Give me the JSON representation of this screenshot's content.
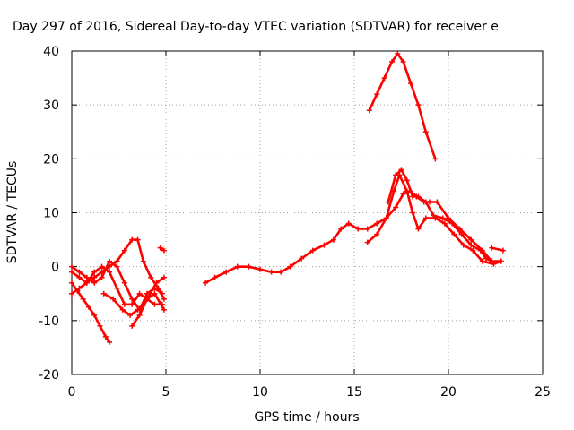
{
  "chart_data": {
    "type": "scatter",
    "title": "Day 297 of 2016, Sidereal Day-to-day VTEC variation (SDTVAR) for receiver e",
    "xlabel": "GPS time / hours",
    "ylabel": "SDTVAR / TECUs",
    "xlim": [
      0,
      25
    ],
    "ylim": [
      -20,
      40
    ],
    "xticks": [
      "0",
      "5",
      "10",
      "15",
      "20",
      "25"
    ],
    "yticks": [
      "-20",
      "-10",
      "0",
      "10",
      "20",
      "30",
      "40"
    ],
    "grid": true,
    "legend": "none",
    "marker": "+",
    "color": "#ff0000",
    "series": [
      {
        "x": [
          0,
          0.3,
          0.6,
          0.9,
          1.2,
          1.5,
          1.8,
          2.0
        ],
        "y": [
          -3,
          -4.5,
          -6,
          -7.5,
          -9,
          -11,
          -13,
          -14
        ]
      },
      {
        "x": [
          0,
          0.4,
          0.8,
          1.2,
          1.6,
          2.0,
          2.4,
          2.8,
          3.2,
          3.6,
          4.0,
          4.4,
          4.8
        ],
        "y": [
          -1,
          -2,
          -3,
          -1,
          0,
          -1,
          -4,
          -7,
          -7,
          -5,
          -6,
          -7,
          -7
        ]
      },
      {
        "x": [
          0,
          0.4,
          0.8,
          1.2,
          1.6,
          2.0,
          2.4,
          2.8,
          3.2,
          3.6,
          4.0,
          4.4,
          4.8
        ],
        "y": [
          0,
          -1,
          -2,
          -3,
          -2,
          1,
          0,
          -3,
          -6,
          -8,
          -5,
          -4,
          -5
        ]
      },
      {
        "x": [
          0,
          0.4,
          0.8,
          1.2,
          1.6,
          2.0,
          2.4,
          2.8,
          3.2,
          3.5,
          3.8,
          4.2,
          4.6,
          4.9
        ],
        "y": [
          -5,
          -4,
          -3,
          -2,
          -1,
          0,
          1,
          3,
          5,
          5,
          1,
          -2,
          -4,
          -6
        ]
      },
      {
        "x": [
          1.7,
          2.2,
          2.7,
          3.1,
          3.5,
          4.0,
          4.5,
          4.9
        ],
        "y": [
          -5,
          -6,
          -8,
          -9,
          -8,
          -6,
          -3,
          -2
        ]
      },
      {
        "x": [
          3.2,
          3.6,
          4.0,
          4.4,
          4.9
        ],
        "y": [
          -11,
          -9,
          -6,
          -5,
          -8
        ]
      },
      {
        "x": [
          4.7,
          4.9
        ],
        "y": [
          3.5,
          3
        ]
      },
      {
        "x": [
          7.1,
          7.6,
          8.2,
          8.8,
          9.4,
          10.0,
          10.6,
          11.1,
          11.6,
          12.2,
          12.8,
          13.4,
          13.9,
          14.3,
          14.7,
          15.2,
          15.7
        ],
        "y": [
          -3,
          -2,
          -1,
          0,
          0,
          -0.5,
          -1,
          -1,
          0,
          1.5,
          3,
          4,
          5,
          7,
          8,
          7,
          7
        ]
      },
      {
        "x": [
          15.7,
          16.2,
          16.7,
          17.2,
          17.6,
          18.0,
          18.3,
          18.7,
          19.0,
          19.4,
          20.0,
          20.6,
          21.2,
          21.8,
          22.3,
          22.8
        ],
        "y": [
          7,
          8,
          9,
          11,
          13.5,
          14,
          13,
          12,
          12,
          12,
          9,
          7,
          5,
          3,
          1,
          1
        ]
      },
      {
        "x": [
          15.7,
          16.2,
          16.7,
          17.1,
          17.4,
          17.8,
          18.1,
          18.4,
          18.8,
          19.3,
          19.8,
          20.3,
          20.8,
          21.3,
          21.8,
          22.4,
          22.8
        ],
        "y": [
          4.5,
          6,
          9,
          14,
          17,
          14,
          10,
          7,
          9,
          9,
          8,
          6,
          4,
          3,
          1,
          0.5,
          1
        ]
      },
      {
        "x": [
          16.8,
          17.2,
          17.5,
          17.8,
          18.1,
          18.4,
          18.8,
          19.2,
          19.7,
          20.2,
          20.7,
          21.2,
          21.7,
          22.0,
          22.3
        ],
        "y": [
          12,
          17,
          18,
          16,
          13,
          13,
          12,
          9.5,
          9,
          8,
          6,
          4,
          3,
          1.5,
          1
        ]
      },
      {
        "x": [
          15.8,
          16.2,
          16.6,
          17.0,
          17.3,
          17.6,
          18.0,
          18.4,
          18.8,
          19.3
        ],
        "y": [
          29,
          32,
          35,
          38,
          39.5,
          38,
          34,
          30,
          25,
          20
        ]
      },
      {
        "x": [
          22.3,
          22.9
        ],
        "y": [
          3.5,
          3
        ]
      }
    ]
  }
}
